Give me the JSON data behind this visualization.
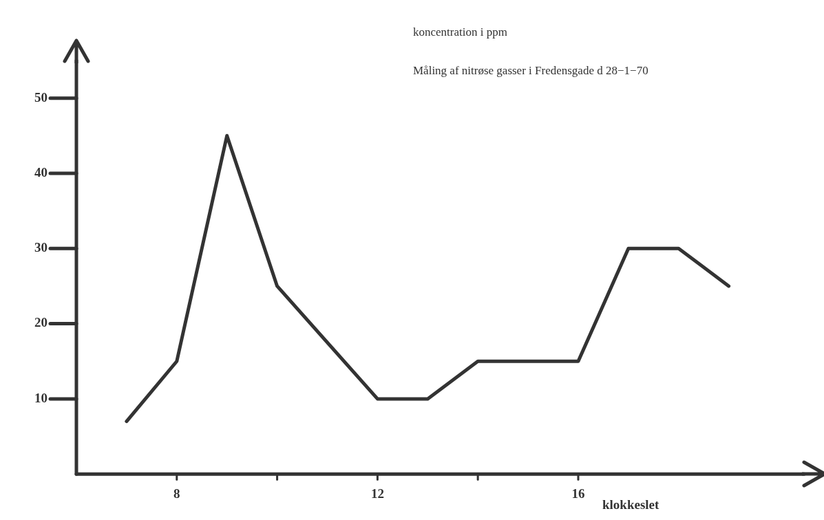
{
  "chart_data": {
    "type": "line",
    "title": "Måling af nitrøse gasser i Fredensgade d 28−1−70",
    "ylabel": "koncentration i ppm",
    "xlabel": "klokkeslet",
    "x": [
      7,
      8,
      9,
      10,
      12,
      13,
      14,
      16,
      17,
      18,
      19
    ],
    "series": [
      {
        "color": "#333333",
        "values": [
          7,
          15,
          45,
          25,
          10,
          10,
          15,
          15,
          30,
          30,
          25
        ]
      }
    ],
    "xlim": [
      6,
      20.5
    ],
    "xticks": [
      8,
      {
        "value": 10,
        "label": null
      },
      12,
      {
        "value": 14,
        "label": null
      },
      16
    ],
    "ylim": [
      0,
      55
    ],
    "yticks": [
      10,
      20,
      30,
      40,
      50
    ],
    "grid": false,
    "legend": false,
    "marker": "none",
    "line_style": "solid"
  }
}
